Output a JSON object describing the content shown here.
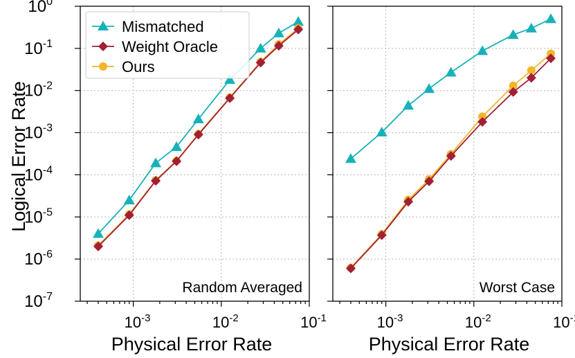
{
  "colors": {
    "mismatched": "#17b2b8",
    "weight_oracle": "#a21f35",
    "ours": "#f2b62b"
  },
  "chart_data": [
    {
      "type": "line",
      "panel_label": "Random Averaged",
      "xscale": "log",
      "yscale": "log",
      "xlim": [
        0.00025,
        0.1
      ],
      "ylim": [
        1e-07,
        1
      ],
      "grid": true,
      "xlabel": "Physical Error Rate",
      "ylabel": "Logical Error Rate",
      "legend": "top-left",
      "x": [
        0.0004,
        0.0009,
        0.0018,
        0.0031,
        0.0055,
        0.0125,
        0.028,
        0.045,
        0.075
      ],
      "series": [
        {
          "name": "Mismatched",
          "marker": "triangle",
          "values": [
            4e-06,
            2.5e-05,
            0.00019,
            0.00046,
            0.0021,
            0.018,
            0.1,
            0.23,
            0.43
          ]
        },
        {
          "name": "Weight Oracle",
          "marker": "diamond",
          "values": [
            2e-06,
            1.1e-05,
            7.2e-05,
            0.00021,
            0.0009,
            0.0066,
            0.046,
            0.115,
            0.28
          ]
        },
        {
          "name": "Ours",
          "marker": "circle",
          "values": [
            2.1e-06,
            1.15e-05,
            7.4e-05,
            0.000215,
            0.00093,
            0.0068,
            0.048,
            0.125,
            0.3
          ]
        }
      ]
    },
    {
      "type": "line",
      "panel_label": "Worst Case",
      "xscale": "log",
      "yscale": "log",
      "xlim": [
        0.00025,
        0.1
      ],
      "ylim": [
        1e-07,
        1
      ],
      "grid": true,
      "xlabel": "Physical Error Rate",
      "x": [
        0.0004,
        0.0009,
        0.0018,
        0.0031,
        0.0055,
        0.0125,
        0.028,
        0.045,
        0.075
      ],
      "series": [
        {
          "name": "Mismatched",
          "marker": "triangle",
          "values": [
            0.00024,
            0.00102,
            0.0044,
            0.011,
            0.027,
            0.087,
            0.21,
            0.3,
            0.5
          ]
        },
        {
          "name": "Weight Oracle",
          "marker": "diamond",
          "values": [
            6e-07,
            3.7e-06,
            2.3e-05,
            7e-05,
            0.00028,
            0.0018,
            0.0092,
            0.02,
            0.058
          ]
        },
        {
          "name": "Ours",
          "marker": "circle",
          "values": [
            6.2e-07,
            3.9e-06,
            2.55e-05,
            7.8e-05,
            0.00031,
            0.0024,
            0.013,
            0.03,
            0.075
          ]
        }
      ]
    }
  ],
  "axes": {
    "x_ticks": [
      {
        "value": 0.001,
        "base": "10",
        "exp": "-3"
      },
      {
        "value": 0.01,
        "base": "10",
        "exp": "-2"
      },
      {
        "value": 0.1,
        "base": "10",
        "exp": "-1"
      }
    ],
    "y_ticks": [
      {
        "value": 1,
        "base": "10",
        "exp": "0"
      },
      {
        "value": 0.1,
        "base": "10",
        "exp": "-1"
      },
      {
        "value": 0.01,
        "base": "10",
        "exp": "-2"
      },
      {
        "value": 0.001,
        "base": "10",
        "exp": "-3"
      },
      {
        "value": 0.0001,
        "base": "10",
        "exp": "-4"
      },
      {
        "value": 1e-05,
        "base": "10",
        "exp": "-5"
      },
      {
        "value": 1e-06,
        "base": "10",
        "exp": "-6"
      },
      {
        "value": 1e-07,
        "base": "10",
        "exp": "-7"
      }
    ]
  },
  "legend": {
    "items": [
      {
        "label": "Mismatched",
        "marker": "triangle",
        "key": "mismatched"
      },
      {
        "label": "Weight Oracle",
        "marker": "diamond",
        "key": "weight_oracle"
      },
      {
        "label": "Ours",
        "marker": "circle",
        "key": "ours"
      }
    ]
  }
}
